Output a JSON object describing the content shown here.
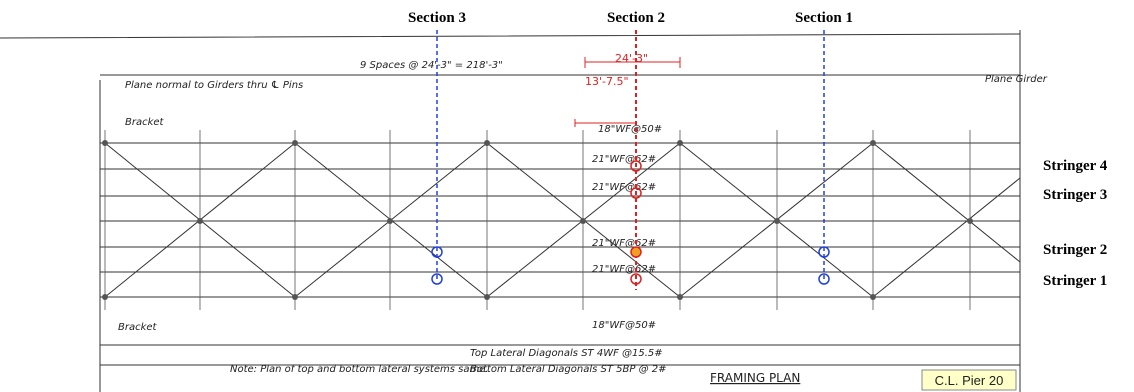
{
  "sections": [
    "Section 3",
    "Section 2",
    "Section 1"
  ],
  "stringers": [
    "Stringer 4",
    "Stringer 3",
    "Stringer 2",
    "Stringer 1"
  ],
  "drawing": {
    "span": "9 Spaces @ 24'-3\" = 218'-3\"",
    "panel": "24'-3\"",
    "offset": "13'-7.5\"",
    "plane_left": "Plane normal to Girders thru ℄ Pins",
    "plane_right": "Plane Girder",
    "bracket": "Bracket",
    "top_beam": "18\"WF@50#",
    "stringer_beams": [
      "21\"WF@62#",
      "21\"WF@62#",
      "21\"WF@62#",
      "21\"WF@62#"
    ],
    "bottom_beam": "18\"WF@50#",
    "top_lateral": "Top Lateral Diagonals ST 4WF @15.5#",
    "bottom_lateral": "Bottom Lateral Diagonals ST 5BP @ 2#",
    "note": "Note: Plan of top and bottom lateral systems same.",
    "title": "FRAMING PLAN"
  },
  "stamp": "C.L. Pier 20"
}
